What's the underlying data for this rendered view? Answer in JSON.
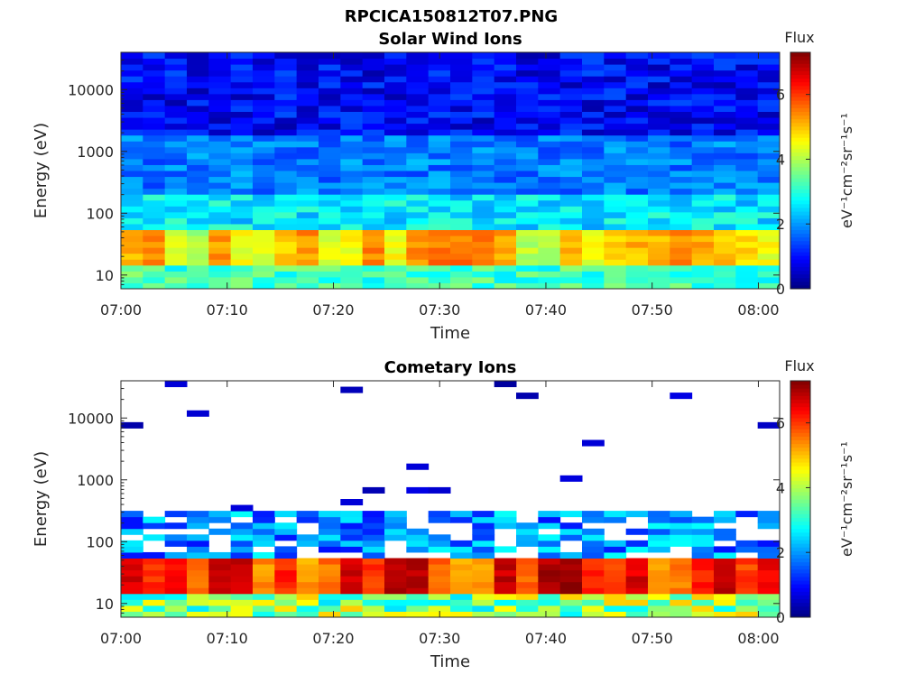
{
  "figure": {
    "title": "RPCICA150812T07.PNG"
  },
  "colormap": {
    "name": "jet",
    "stops": [
      "#00008f",
      "#0000ff",
      "#00ffff",
      "#ffff00",
      "#ff0000",
      "#800000"
    ]
  },
  "chart_data": [
    {
      "type": "heatmap",
      "title": "Solar Wind Ions",
      "xlabel": "Time",
      "ylabel": "Energy (eV)",
      "colorbar_label": "Flux",
      "colorbar_units": "eV⁻¹cm⁻²sr⁻¹s⁻¹",
      "x_ticks": [
        "07:00",
        "07:10",
        "07:20",
        "07:30",
        "07:40",
        "07:50",
        "08:00"
      ],
      "x_range_min": [
        0,
        62
      ],
      "y_scale": "log",
      "y_ticks": [
        "10",
        "100",
        "1000",
        "10000"
      ],
      "y_tick_values": [
        10,
        100,
        1000,
        10000
      ],
      "y_range_eV": [
        6,
        40000
      ],
      "colorbar_ticks": [
        0,
        2,
        4,
        6
      ],
      "color_range": [
        0,
        7.3
      ],
      "description_rows": [
        {
          "energy_band_eV": [
            6,
            15
          ],
          "typical_value": 3.0
        },
        {
          "energy_band_eV": [
            15,
            60
          ],
          "typical_value": 4.6
        },
        {
          "energy_band_eV": [
            60,
            200
          ],
          "typical_value": 2.5
        },
        {
          "energy_band_eV": [
            200,
            2000
          ],
          "typical_value": 1.7
        },
        {
          "energy_band_eV": [
            2000,
            40000
          ],
          "typical_value": 0.8
        }
      ]
    },
    {
      "type": "heatmap",
      "title": "Cometary Ions",
      "xlabel": "Time",
      "ylabel": "Energy (eV)",
      "colorbar_label": "Flux",
      "colorbar_units": "eV⁻¹cm⁻²sr⁻¹s⁻¹",
      "x_ticks": [
        "07:00",
        "07:10",
        "07:20",
        "07:30",
        "07:40",
        "07:50",
        "08:00"
      ],
      "x_range_min": [
        0,
        62
      ],
      "y_scale": "log",
      "y_ticks": [
        "10",
        "100",
        "1000",
        "10000"
      ],
      "y_tick_values": [
        10,
        100,
        1000,
        10000
      ],
      "y_range_eV": [
        6,
        40000
      ],
      "colorbar_ticks": [
        0,
        2,
        4,
        6
      ],
      "color_range": [
        0,
        7.3
      ],
      "description_rows": [
        {
          "energy_band_eV": [
            6,
            15
          ],
          "typical_value": 3.5
        },
        {
          "energy_band_eV": [
            15,
            60
          ],
          "typical_value": 5.8
        },
        {
          "energy_band_eV": [
            60,
            300
          ],
          "typical_value": 1.6
        },
        {
          "energy_band_eV": [
            300,
            40000
          ],
          "typical_value": 0.5
        }
      ]
    }
  ]
}
